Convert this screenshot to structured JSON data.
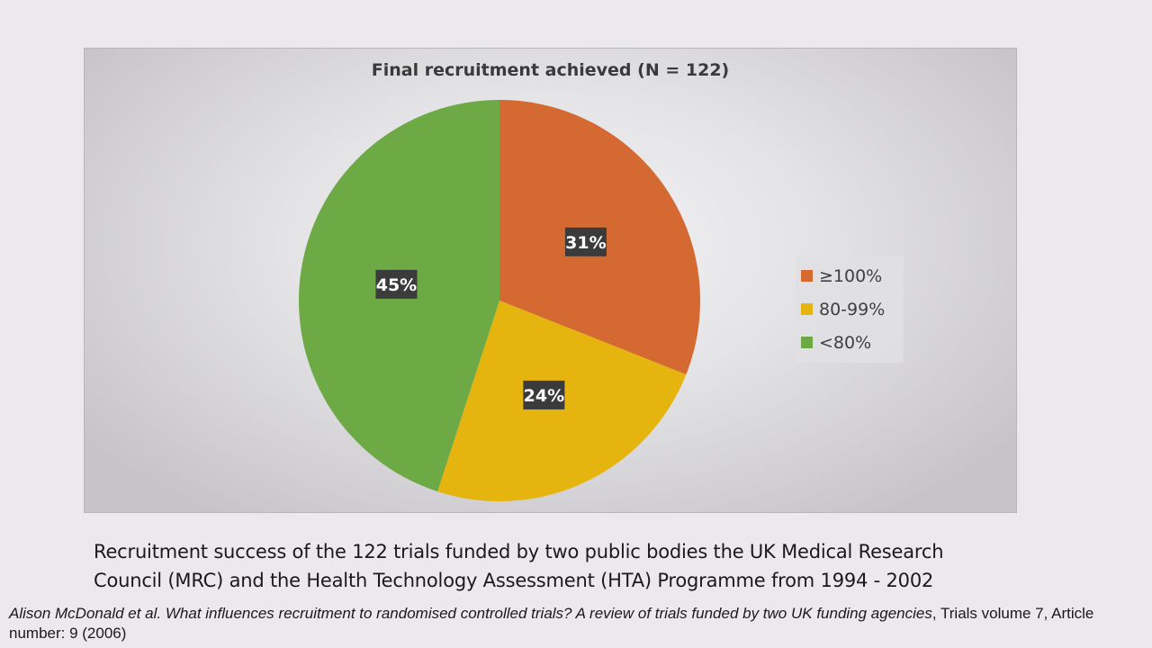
{
  "chart_data": {
    "type": "pie",
    "title": "Final recruitment achieved (N = 122)",
    "categories": [
      "≥100%",
      "80-99%",
      "<80%"
    ],
    "values": [
      31,
      24,
      45
    ],
    "labels": [
      "31%",
      "24%",
      "45%"
    ],
    "colors": [
      "#d46a31",
      "#e6b40e",
      "#6daa45"
    ],
    "legend_position": "right"
  },
  "caption": "Recruitment success of the 122 trials funded by two public bodies the UK Medical Research Council (MRC) and the Health Technology Assessment (HTA) Programme from 1994 - 2002",
  "citation": {
    "italic": "Alison McDonald et al. What influences recruitment to randomised controlled trials? A review of trials funded by two UK funding agencies",
    "rest": ", Trials volume 7, Article number: 9 (2006)"
  }
}
